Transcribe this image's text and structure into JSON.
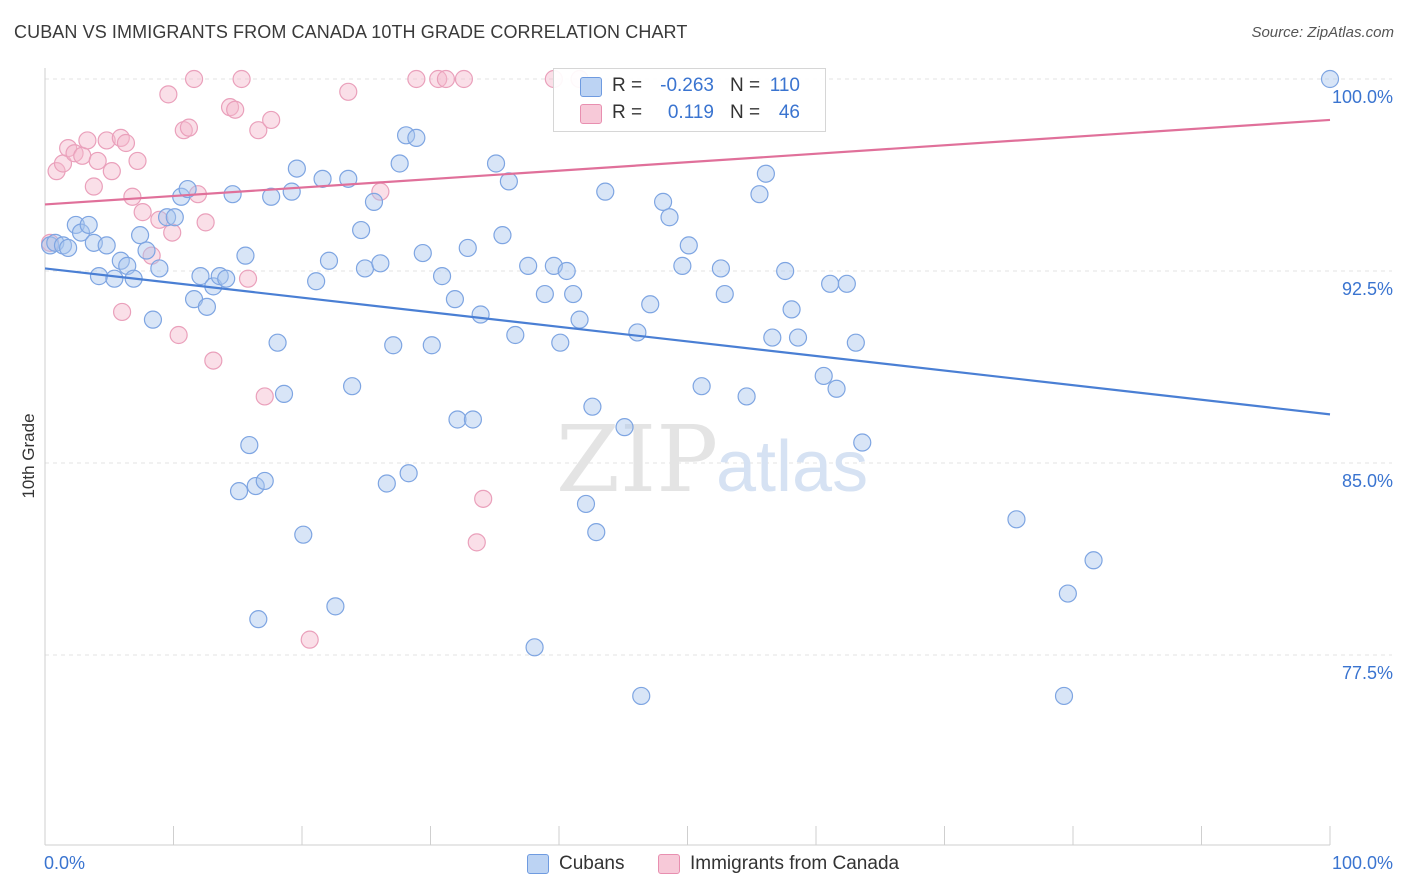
{
  "header": {
    "title": "CUBAN VS IMMIGRANTS FROM CANADA 10TH GRADE CORRELATION CHART",
    "source": "Source: ZipAtlas.com"
  },
  "watermark": {
    "zip": "ZIP",
    "atlas": "atlas"
  },
  "colors": {
    "blue": "#4a7fd4",
    "blue_fill": "#a9c6ee",
    "pink": "#e0709a",
    "pink_fill": "#f4b8cc",
    "axis_label": "#3a74d0",
    "grid": "#e3e3e3"
  },
  "legend": {
    "rows": [
      {
        "r_label": "R =",
        "r_value": "-0.263",
        "n_label": "N =",
        "n_value": "110"
      },
      {
        "r_label": "R =",
        "r_value": "0.119",
        "n_label": "N =",
        "n_value": "46"
      }
    ]
  },
  "bottom_legend": {
    "cubans": "Cubans",
    "canada": "Immigrants from Canada"
  },
  "chart_data": {
    "type": "scatter",
    "title": "CUBAN VS IMMIGRANTS FROM CANADA 10TH GRADE CORRELATION CHART",
    "xlabel": "",
    "ylabel": "10th Grade",
    "xlim": [
      0,
      100
    ],
    "ylim": [
      71.8,
      100.9
    ],
    "x_tick_labels": [
      "0.0%",
      "100.0%"
    ],
    "y_ticks": [
      77.5,
      85.0,
      92.5,
      100.0
    ],
    "y_tick_labels": [
      "77.5%",
      "85.0%",
      "92.5%",
      "100.0%"
    ],
    "grid": true,
    "legend_position": "top-center",
    "series": [
      {
        "name": "Cubans",
        "color": "#4a7fd4",
        "trend": {
          "x": [
            0,
            100
          ],
          "y": [
            92.6,
            86.9
          ]
        },
        "points": [
          [
            0.4,
            93.5
          ],
          [
            0.8,
            93.6
          ],
          [
            1.4,
            93.5
          ],
          [
            1.8,
            93.4
          ],
          [
            2.4,
            94.3
          ],
          [
            2.8,
            94.0
          ],
          [
            3.4,
            94.3
          ],
          [
            3.8,
            93.6
          ],
          [
            4.2,
            92.3
          ],
          [
            4.8,
            93.5
          ],
          [
            5.4,
            92.2
          ],
          [
            5.9,
            92.9
          ],
          [
            6.4,
            92.7
          ],
          [
            6.9,
            92.2
          ],
          [
            7.4,
            93.9
          ],
          [
            7.9,
            93.3
          ],
          [
            8.4,
            90.6
          ],
          [
            8.9,
            92.6
          ],
          [
            9.5,
            94.6
          ],
          [
            10.1,
            94.6
          ],
          [
            10.6,
            95.4
          ],
          [
            11.1,
            95.7
          ],
          [
            11.6,
            91.4
          ],
          [
            12.1,
            92.3
          ],
          [
            12.6,
            91.1
          ],
          [
            13.1,
            91.9
          ],
          [
            13.6,
            92.3
          ],
          [
            14.1,
            92.2
          ],
          [
            14.6,
            95.5
          ],
          [
            15.1,
            83.9
          ],
          [
            15.6,
            93.1
          ],
          [
            15.9,
            85.7
          ],
          [
            16.4,
            84.1
          ],
          [
            16.6,
            78.9
          ],
          [
            17.1,
            84.3
          ],
          [
            17.6,
            95.4
          ],
          [
            18.1,
            89.7
          ],
          [
            18.6,
            87.7
          ],
          [
            19.2,
            95.6
          ],
          [
            19.6,
            96.5
          ],
          [
            20.1,
            82.2
          ],
          [
            21.1,
            92.1
          ],
          [
            21.6,
            96.1
          ],
          [
            22.1,
            92.9
          ],
          [
            22.6,
            79.4
          ],
          [
            23.6,
            96.1
          ],
          [
            23.9,
            88.0
          ],
          [
            24.6,
            94.1
          ],
          [
            24.9,
            92.6
          ],
          [
            25.6,
            95.2
          ],
          [
            26.1,
            92.8
          ],
          [
            26.6,
            84.2
          ],
          [
            27.1,
            89.6
          ],
          [
            27.6,
            96.7
          ],
          [
            28.1,
            97.8
          ],
          [
            28.3,
            84.6
          ],
          [
            28.9,
            97.7
          ],
          [
            29.4,
            93.2
          ],
          [
            30.1,
            89.6
          ],
          [
            30.9,
            92.3
          ],
          [
            31.9,
            91.4
          ],
          [
            32.1,
            86.7
          ],
          [
            32.9,
            93.4
          ],
          [
            33.3,
            86.7
          ],
          [
            33.9,
            90.8
          ],
          [
            35.1,
            96.7
          ],
          [
            35.6,
            93.9
          ],
          [
            36.1,
            96.0
          ],
          [
            36.6,
            90.0
          ],
          [
            37.6,
            92.7
          ],
          [
            38.1,
            77.8
          ],
          [
            38.9,
            91.6
          ],
          [
            39.6,
            92.7
          ],
          [
            40.1,
            89.7
          ],
          [
            40.6,
            92.5
          ],
          [
            41.1,
            91.6
          ],
          [
            41.6,
            90.6
          ],
          [
            42.1,
            83.4
          ],
          [
            42.6,
            87.2
          ],
          [
            42.9,
            82.3
          ],
          [
            43.6,
            95.6
          ],
          [
            45.1,
            86.4
          ],
          [
            46.1,
            90.1
          ],
          [
            46.4,
            75.9
          ],
          [
            47.1,
            91.2
          ],
          [
            48.1,
            95.2
          ],
          [
            48.6,
            94.6
          ],
          [
            49.6,
            92.7
          ],
          [
            50.1,
            93.5
          ],
          [
            51.1,
            88.0
          ],
          [
            52.6,
            92.6
          ],
          [
            52.9,
            91.6
          ],
          [
            54.6,
            87.6
          ],
          [
            55.6,
            95.5
          ],
          [
            56.1,
            96.3
          ],
          [
            56.6,
            89.9
          ],
          [
            57.6,
            92.5
          ],
          [
            58.1,
            91.0
          ],
          [
            58.6,
            89.9
          ],
          [
            60.6,
            88.4
          ],
          [
            61.1,
            92.0
          ],
          [
            61.6,
            87.9
          ],
          [
            62.4,
            92.0
          ],
          [
            63.1,
            89.7
          ],
          [
            63.6,
            85.8
          ],
          [
            75.6,
            82.8
          ],
          [
            79.6,
            79.9
          ],
          [
            81.6,
            81.2
          ],
          [
            79.3,
            75.9
          ],
          [
            100.0,
            100.0
          ]
        ]
      },
      {
        "name": "Immigrants from Canada",
        "color": "#e0709a",
        "trend": {
          "x": [
            0,
            100
          ],
          "y": [
            95.1,
            98.4
          ]
        },
        "points": [
          [
            0.9,
            96.4
          ],
          [
            1.4,
            96.7
          ],
          [
            1.8,
            97.3
          ],
          [
            2.3,
            97.1
          ],
          [
            2.9,
            97.0
          ],
          [
            3.3,
            97.6
          ],
          [
            3.8,
            95.8
          ],
          [
            4.1,
            96.8
          ],
          [
            4.8,
            97.6
          ],
          [
            5.2,
            96.4
          ],
          [
            5.9,
            97.7
          ],
          [
            6.3,
            97.5
          ],
          [
            6.8,
            95.4
          ],
          [
            7.2,
            96.8
          ],
          [
            7.6,
            94.8
          ],
          [
            8.3,
            93.1
          ],
          [
            8.9,
            94.5
          ],
          [
            9.6,
            99.4
          ],
          [
            9.9,
            94.0
          ],
          [
            10.4,
            90.0
          ],
          [
            10.8,
            98.0
          ],
          [
            11.2,
            98.1
          ],
          [
            11.9,
            95.5
          ],
          [
            12.5,
            94.4
          ],
          [
            13.1,
            89.0
          ],
          [
            14.4,
            98.9
          ],
          [
            14.8,
            98.8
          ],
          [
            15.3,
            100.0
          ],
          [
            15.8,
            92.2
          ],
          [
            16.6,
            98.0
          ],
          [
            17.1,
            87.6
          ],
          [
            17.6,
            98.4
          ],
          [
            20.6,
            78.1
          ],
          [
            23.6,
            99.5
          ],
          [
            26.1,
            95.6
          ],
          [
            28.9,
            100.0
          ],
          [
            30.6,
            100.0
          ],
          [
            31.2,
            100.0
          ],
          [
            32.6,
            100.0
          ],
          [
            33.6,
            81.9
          ],
          [
            34.1,
            83.6
          ],
          [
            39.6,
            100.0
          ],
          [
            41.6,
            100.0
          ],
          [
            11.6,
            100.0
          ],
          [
            6.0,
            90.9
          ],
          [
            0.4,
            93.6
          ]
        ]
      }
    ]
  }
}
